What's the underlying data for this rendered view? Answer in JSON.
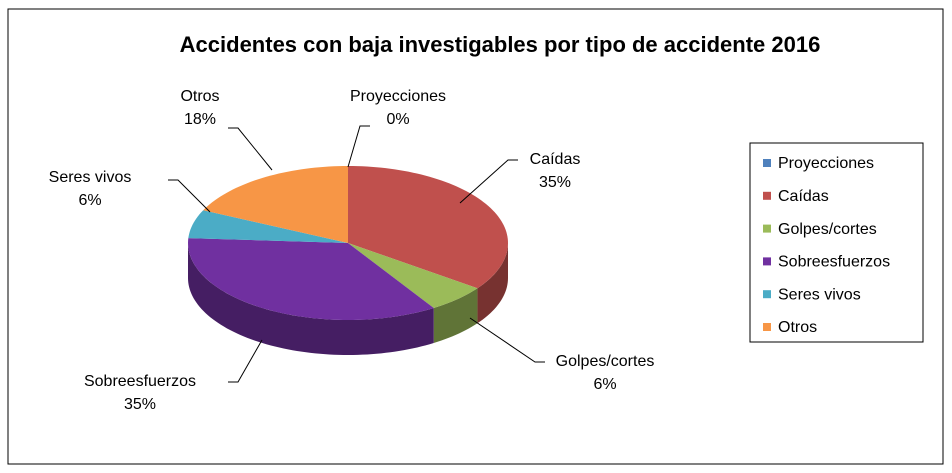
{
  "chart_data": {
    "type": "pie",
    "title": "Accidentes con baja investigables por tipo de accidente 2016",
    "categories": [
      "Proyecciones",
      "Caídas",
      "Golpes/cortes",
      "Sobreesfuerzos",
      "Seres vivos",
      "Otros"
    ],
    "values": [
      0,
      35,
      6,
      35,
      6,
      18
    ],
    "value_labels": [
      "0%",
      "35%",
      "6%",
      "35%",
      "6%",
      "18%"
    ],
    "colors": [
      "#4f81bd",
      "#c0504d",
      "#9bbb59",
      "#7030a0",
      "#4bacc6",
      "#f79646"
    ],
    "legend": "right"
  }
}
